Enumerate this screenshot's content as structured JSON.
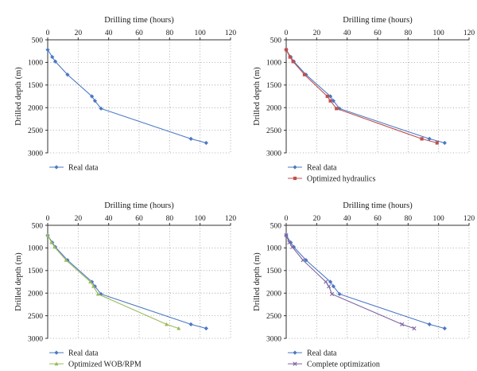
{
  "chart_data": [
    {
      "type": "line",
      "title": "",
      "xlabel": "Drilling time (hours)",
      "ylabel": "Drilled depth (m)",
      "xlim": [
        0,
        120
      ],
      "ylim": [
        500,
        3000
      ],
      "x_ticks": [
        "0",
        "20",
        "40",
        "60",
        "80",
        "100",
        "120"
      ],
      "y_ticks": [
        "500",
        "1000",
        "1500",
        "2000",
        "2500",
        "3000"
      ],
      "y_inverted": true,
      "x_axis_position": "top",
      "grid": "dotted",
      "legend_position": "bottom-left",
      "series": [
        {
          "name": "Real data",
          "color": "#4a78c4",
          "marker": "diamond",
          "x": [
            0,
            3,
            5,
            13,
            29,
            31,
            35,
            94,
            104
          ],
          "y": [
            720,
            880,
            980,
            1270,
            1750,
            1850,
            2020,
            2690,
            2780
          ]
        }
      ]
    },
    {
      "type": "line",
      "title": "",
      "xlabel": "Drilling time (hours)",
      "ylabel": "Drilled depth (m)",
      "xlim": [
        0,
        120
      ],
      "ylim": [
        500,
        3000
      ],
      "x_ticks": [
        "0",
        "20",
        "40",
        "60",
        "80",
        "100",
        "120"
      ],
      "y_ticks": [
        "500",
        "1000",
        "1500",
        "2000",
        "2500",
        "3000"
      ],
      "y_inverted": true,
      "x_axis_position": "top",
      "grid": "dotted",
      "legend_position": "bottom-left",
      "series": [
        {
          "name": "Real data",
          "color": "#4a78c4",
          "marker": "diamond",
          "x": [
            0,
            3,
            5,
            13,
            29,
            31,
            35,
            94,
            104
          ],
          "y": [
            720,
            880,
            980,
            1270,
            1750,
            1850,
            2020,
            2690,
            2780
          ]
        },
        {
          "name": "Optimized hydraulics",
          "color": "#c0504d",
          "marker": "square",
          "x": [
            0,
            2.5,
            4.5,
            12,
            27,
            29,
            33,
            89,
            99
          ],
          "y": [
            720,
            880,
            980,
            1270,
            1750,
            1850,
            2020,
            2690,
            2780
          ]
        }
      ]
    },
    {
      "type": "line",
      "title": "",
      "xlabel": "Drilling time (hours)",
      "ylabel": "Drilled depth (m)",
      "xlim": [
        0,
        120
      ],
      "ylim": [
        500,
        3000
      ],
      "x_ticks": [
        "0",
        "20",
        "40",
        "60",
        "80",
        "100",
        "120"
      ],
      "y_ticks": [
        "500",
        "1000",
        "1500",
        "2000",
        "2500",
        "3000"
      ],
      "y_inverted": true,
      "x_axis_position": "top",
      "grid": "dotted",
      "legend_position": "bottom-left",
      "series": [
        {
          "name": "Real data",
          "color": "#4a78c4",
          "marker": "diamond",
          "x": [
            0,
            3,
            5,
            13,
            29,
            31,
            35,
            94,
            104
          ],
          "y": [
            720,
            880,
            980,
            1270,
            1750,
            1850,
            2020,
            2690,
            2780
          ]
        },
        {
          "name": "Optimized WOB/RPM",
          "color": "#9bbb59",
          "marker": "triangle",
          "x": [
            0,
            2.5,
            4.5,
            12,
            28,
            30,
            33,
            78,
            86
          ],
          "y": [
            720,
            880,
            980,
            1270,
            1750,
            1850,
            2020,
            2690,
            2780
          ]
        }
      ]
    },
    {
      "type": "line",
      "title": "",
      "xlabel": "Drilling time (hours)",
      "ylabel": "Drilled depth (m)",
      "xlim": [
        0,
        120
      ],
      "ylim": [
        500,
        3000
      ],
      "x_ticks": [
        "0",
        "20",
        "40",
        "60",
        "80",
        "100",
        "120"
      ],
      "y_ticks": [
        "500",
        "1000",
        "1500",
        "2000",
        "2500",
        "3000"
      ],
      "y_inverted": true,
      "x_axis_position": "top",
      "grid": "dotted",
      "legend_position": "bottom-left",
      "series": [
        {
          "name": "Real data",
          "color": "#4a78c4",
          "marker": "diamond",
          "x": [
            0,
            3,
            5,
            13,
            29,
            31,
            35,
            94,
            104
          ],
          "y": [
            720,
            880,
            980,
            1270,
            1750,
            1850,
            2020,
            2690,
            2780
          ]
        },
        {
          "name": "Complete optimization",
          "color": "#8064a2",
          "marker": "x",
          "x": [
            0,
            2,
            4,
            11,
            26,
            28,
            30,
            76,
            84
          ],
          "y": [
            720,
            880,
            980,
            1270,
            1750,
            1850,
            2020,
            2690,
            2780
          ]
        }
      ]
    }
  ]
}
